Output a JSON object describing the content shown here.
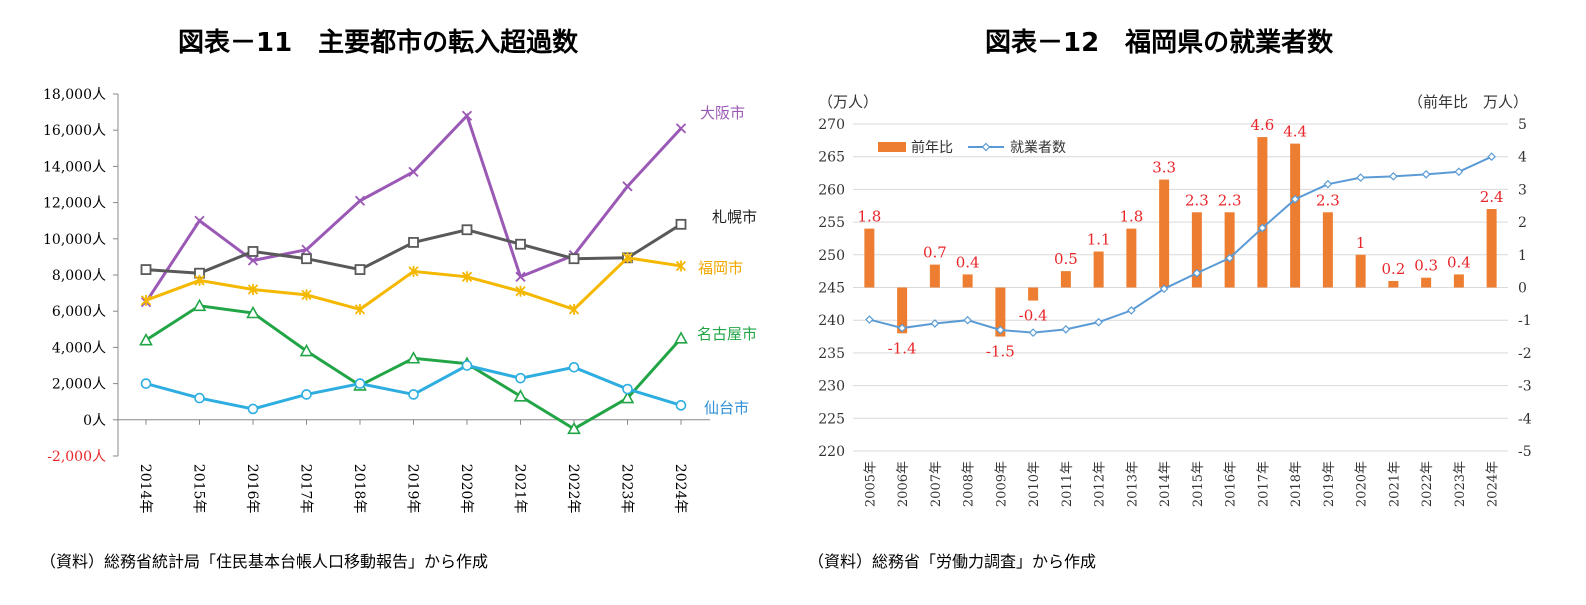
{
  "chart_data": [
    {
      "type": "line",
      "title": "図表－11　主要都市の転入超過数",
      "source": "（資料）総務省統計局「住民基本台帳人口移動報告」から作成",
      "x": [
        "2014年",
        "2015年",
        "2016年",
        "2017年",
        "2018年",
        "2019年",
        "2020年",
        "2021年",
        "2022年",
        "2023年",
        "2024年"
      ],
      "ylim": [
        -2000,
        18000
      ],
      "yticks": [
        -2000,
        0,
        2000,
        4000,
        6000,
        8000,
        10000,
        12000,
        14000,
        16000,
        18000
      ],
      "ytick_labels": [
        "-2,000人",
        "0人",
        "2,000人",
        "4,000人",
        "6,000人",
        "8,000人",
        "10,000人",
        "12,000人",
        "14,000人",
        "16,000人",
        "18,000人"
      ],
      "series": [
        {
          "name": "大阪市",
          "color": "#9b59b6",
          "marker": "x",
          "values": [
            6500,
            11000,
            8800,
            9400,
            12100,
            13700,
            16800,
            7900,
            9100,
            12900,
            16100
          ]
        },
        {
          "name": "札幌市",
          "color": "#595959",
          "marker": "square",
          "values": [
            8300,
            8100,
            9300,
            8900,
            8300,
            9800,
            10500,
            9700,
            8900,
            8950,
            10800
          ]
        },
        {
          "name": "福岡市",
          "color": "#f5b800",
          "marker": "star",
          "values": [
            6600,
            7700,
            7200,
            6900,
            6100,
            8200,
            7900,
            7100,
            6100,
            8950,
            8500
          ]
        },
        {
          "name": "名古屋市",
          "color": "#22a546",
          "marker": "triangle",
          "values": [
            4400,
            6300,
            5900,
            3800,
            1900,
            3400,
            3100,
            1300,
            -500,
            1200,
            4500
          ]
        },
        {
          "name": "仙台市",
          "color": "#2eaee0",
          "marker": "circle",
          "values": [
            2000,
            1200,
            600,
            1400,
            2000,
            1400,
            3000,
            2300,
            2900,
            1700,
            800
          ]
        }
      ]
    },
    {
      "type": "bar+line",
      "title": "図表－12　福岡県の就業者数",
      "source": "（資料）総務省「労働力調査」から作成",
      "x": [
        "2005年",
        "2006年",
        "2007年",
        "2008年",
        "2009年",
        "2010年",
        "2011年",
        "2012年",
        "2013年",
        "2014年",
        "2015年",
        "2016年",
        "2017年",
        "2018年",
        "2019年",
        "2020年",
        "2021年",
        "2022年",
        "2023年",
        "2024年"
      ],
      "left_axis": {
        "label": "（万人）",
        "ylim": [
          220,
          270
        ],
        "ticks": [
          220,
          225,
          230,
          235,
          240,
          245,
          250,
          255,
          260,
          265,
          270
        ]
      },
      "right_axis": {
        "label": "（前年比　万人）",
        "ylim": [
          -5,
          5
        ],
        "ticks": [
          -5,
          -4,
          -3,
          -2,
          -1,
          0,
          1,
          2,
          3,
          4,
          5
        ]
      },
      "legend": [
        "前年比",
        "就業者数"
      ],
      "series": [
        {
          "name": "前年比",
          "type": "bar",
          "axis": "right",
          "color": "#ed7d31",
          "values": [
            1.8,
            -1.4,
            0.7,
            0.4,
            -1.5,
            -0.4,
            0.5,
            1.1,
            1.8,
            3.3,
            2.3,
            2.3,
            4.6,
            4.4,
            2.3,
            1,
            0.2,
            0.3,
            0.4,
            2.4
          ],
          "labels": [
            "1.8",
            "-1.4",
            "0.7",
            "0.4",
            "-1.5",
            "-0.4",
            "0.5",
            "1.1",
            "1.8",
            "3.3",
            "2.3",
            "2.3",
            "4.6",
            "4.4",
            "2.3",
            "1",
            "0.2",
            "0.3",
            "0.4",
            "2.4"
          ],
          "label_color": "#e8262a"
        },
        {
          "name": "就業者数",
          "type": "line",
          "axis": "left",
          "color": "#5b9bd5",
          "values": [
            240.1,
            238.8,
            239.5,
            240.0,
            238.5,
            238.1,
            238.6,
            239.7,
            241.5,
            244.8,
            247.2,
            249.5,
            254.1,
            258.5,
            260.8,
            261.8,
            262.0,
            262.3,
            262.7,
            265.0
          ]
        }
      ]
    }
  ]
}
